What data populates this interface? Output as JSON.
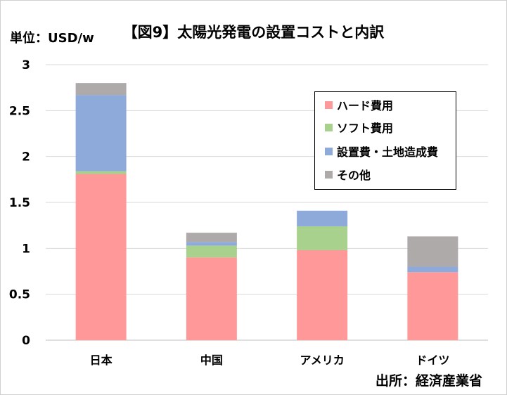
{
  "chart_data": {
    "type": "bar",
    "stacked": true,
    "title": "【図9】太陽光発電の設置コストと内訳",
    "unit_label": "単位：USD/w",
    "source": "出所：経済産業省",
    "categories": [
      "日本",
      "中国",
      "アメリカ",
      "ドイツ"
    ],
    "series": [
      {
        "name": "ハード費用",
        "color": "#ff9999",
        "values": [
          1.81,
          0.9,
          0.98,
          0.74
        ]
      },
      {
        "name": "ソフト費用",
        "color": "#a9d18e",
        "values": [
          0.03,
          0.13,
          0.26,
          0.0
        ]
      },
      {
        "name": "設置費・土地造成費",
        "color": "#8eaadb",
        "values": [
          0.83,
          0.04,
          0.17,
          0.06
        ]
      },
      {
        "name": "その他",
        "color": "#aeaaaa",
        "values": [
          0.13,
          0.1,
          0.0,
          0.33
        ]
      }
    ],
    "ylim": [
      0,
      3
    ],
    "yticks": [
      "0",
      "0.5",
      "1",
      "1.5",
      "2",
      "2.5",
      "3"
    ],
    "grid": true,
    "legend_position": "top-right"
  }
}
